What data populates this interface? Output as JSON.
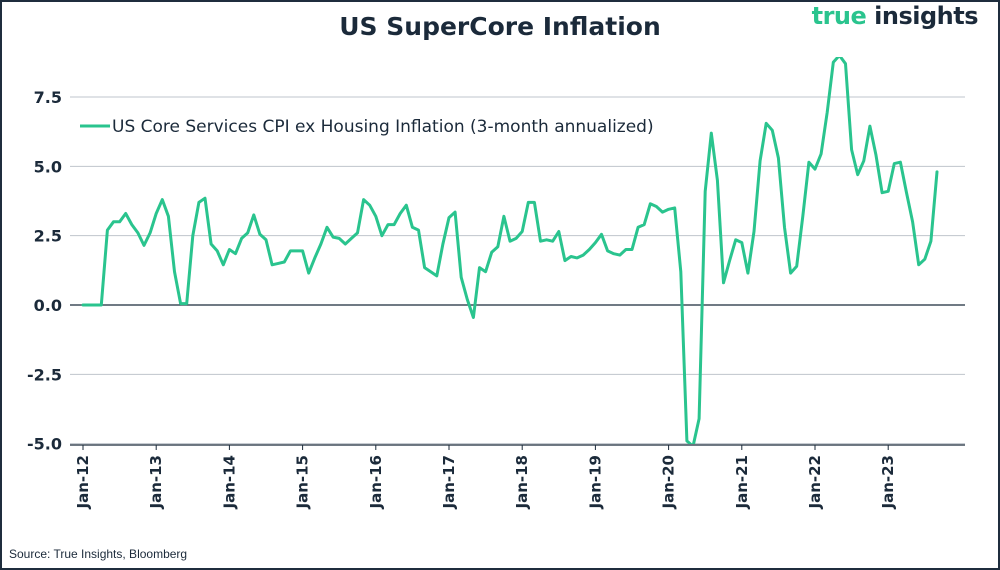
{
  "title": "US SuperCore Inflation",
  "logo": {
    "part1": "true",
    "part2": "insights"
  },
  "source": "Source: True Insights, Bloomberg",
  "colors": {
    "line": "#2ac48e",
    "text": "#1b2a3a",
    "grid": "#bfc5cc"
  },
  "chart_data": {
    "type": "line",
    "title": "US SuperCore Inflation",
    "xlabel": "",
    "ylabel": "",
    "ylim": [
      -5.0,
      9.0
    ],
    "yticks": [
      "7.5",
      "5.0",
      "2.5",
      "0.0",
      "-2.5",
      "-5.0"
    ],
    "ytick_values": [
      7.5,
      5.0,
      2.5,
      0.0,
      -2.5,
      -5.0
    ],
    "xticks": [
      "Jan-12",
      "Jan-13",
      "Jan-14",
      "Jan-15",
      "Jan-16",
      "Jan-17",
      "Jan-18",
      "Jan-19",
      "Jan-20",
      "Jan-21",
      "Jan-22",
      "Jan-23"
    ],
    "legend_position": "top-left",
    "grid": true,
    "series": [
      {
        "name": "US Core Services CPI ex Housing Inflation (3-month annualized)",
        "start": "Jan-12",
        "frequency": "monthly",
        "values": [
          0.0,
          0.0,
          0.0,
          0.0,
          2.7,
          3.0,
          3.0,
          3.3,
          2.9,
          2.6,
          2.15,
          2.6,
          3.3,
          3.8,
          3.2,
          1.2,
          0.05,
          0.05,
          2.5,
          3.7,
          3.85,
          2.2,
          1.95,
          1.45,
          2.0,
          1.85,
          2.4,
          2.6,
          3.25,
          2.55,
          2.35,
          1.45,
          1.5,
          1.55,
          1.95,
          1.95,
          1.95,
          1.15,
          1.7,
          2.2,
          2.8,
          2.45,
          2.4,
          2.2,
          2.4,
          2.6,
          3.8,
          3.6,
          3.2,
          2.5,
          2.9,
          2.9,
          3.3,
          3.6,
          2.8,
          2.7,
          1.35,
          1.2,
          1.05,
          2.2,
          3.15,
          3.35,
          1.0,
          0.2,
          -0.45,
          1.35,
          1.2,
          1.9,
          2.1,
          3.2,
          2.3,
          2.4,
          2.65,
          3.7,
          3.7,
          2.3,
          2.35,
          2.3,
          2.65,
          1.6,
          1.75,
          1.7,
          1.8,
          2.0,
          2.25,
          2.55,
          1.95,
          1.85,
          1.8,
          2.0,
          2.0,
          2.8,
          2.9,
          3.65,
          3.55,
          3.35,
          3.45,
          3.5,
          1.2,
          -4.9,
          -5.1,
          -4.1,
          4.1,
          6.2,
          4.5,
          0.8,
          1.6,
          2.35,
          2.25,
          1.15,
          2.65,
          5.2,
          6.55,
          6.3,
          5.3,
          2.8,
          1.15,
          1.4,
          3.2,
          5.15,
          4.9,
          5.45,
          6.95,
          8.75,
          9.0,
          8.7,
          5.6,
          4.7,
          5.2,
          6.45,
          5.4,
          4.05,
          4.1,
          5.1,
          5.15,
          4.05,
          3.0,
          1.45,
          1.65,
          2.3,
          4.8
        ]
      }
    ]
  }
}
